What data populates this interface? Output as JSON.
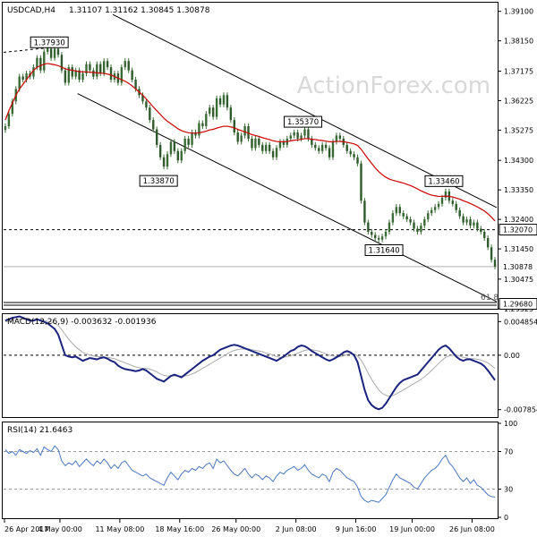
{
  "chart_data": {
    "type": "candlestick",
    "symbol_label": "USDCAD,H4",
    "ohlc_header": "1.31107 1.31162 1.30845 1.30878",
    "watermark": "ActionForex.com",
    "price_axis": {
      "ylim": [
        1.2955,
        1.3935
      ],
      "ticks": [
        "1.39100",
        "1.38150",
        "1.37175",
        "1.36225",
        "1.35275",
        "1.34300",
        "1.33350",
        "1.32400",
        "1.31450",
        "1.30475",
        "1.29525"
      ]
    },
    "price_tags": [
      {
        "label": "1.32070",
        "value": 1.3207,
        "style": "boxed"
      },
      {
        "label": "1.30878",
        "value": 1.30878,
        "style": "current"
      },
      {
        "label": "1.29680",
        "value": 1.2968,
        "style": "boxed"
      }
    ],
    "price_lines": [
      {
        "value": 1.3207,
        "style": "dashed"
      },
      {
        "value": 1.30878,
        "style": "solid-gray"
      },
      {
        "value": 1.2968,
        "style": "double"
      }
    ],
    "fib_label": "61.8",
    "annotations": [
      {
        "label": "1.37930",
        "x": 13,
        "price": 1.3793
      },
      {
        "label": "1.33870",
        "x": 44,
        "price": 1.3387
      },
      {
        "label": "1.35370",
        "x": 85,
        "price": 1.3537
      },
      {
        "label": "1.33460",
        "x": 125,
        "price": 1.3346
      },
      {
        "label": "1.31640",
        "x": 108,
        "price": 1.3164
      }
    ],
    "x_axis": {
      "range": [
        0,
        140
      ],
      "ticks": [
        {
          "label": "26 Apr 2017",
          "x": 0
        },
        {
          "label": "4 May 00:00",
          "x": 16
        },
        {
          "label": "11 May 08:00",
          "x": 33
        },
        {
          "label": "18 May 16:00",
          "x": 50
        },
        {
          "label": "26 May 00:00",
          "x": 66
        },
        {
          "label": "2 Jun 08:00",
          "x": 83
        },
        {
          "label": "9 Jun 16:00",
          "x": 100
        },
        {
          "label": "19 Jun 00:00",
          "x": 116
        },
        {
          "label": "26 Jun 08:00",
          "x": 133
        }
      ]
    },
    "close": [
      1.354,
      1.358,
      1.362,
      1.366,
      1.37,
      1.369,
      1.371,
      1.37,
      1.373,
      1.376,
      1.372,
      1.378,
      1.379,
      1.376,
      1.379,
      1.377,
      1.372,
      1.368,
      1.373,
      1.37,
      1.372,
      1.369,
      1.371,
      1.374,
      1.372,
      1.37,
      1.374,
      1.371,
      1.375,
      1.373,
      1.369,
      1.371,
      1.368,
      1.373,
      1.375,
      1.372,
      1.369,
      1.366,
      1.364,
      1.362,
      1.36,
      1.356,
      1.353,
      1.348,
      1.344,
      1.341,
      1.345,
      1.349,
      1.346,
      1.343,
      1.346,
      1.35,
      1.348,
      1.352,
      1.351,
      1.355,
      1.354,
      1.358,
      1.36,
      1.357,
      1.363,
      1.361,
      1.364,
      1.36,
      1.356,
      1.352,
      1.349,
      1.351,
      1.354,
      1.35,
      1.347,
      1.35,
      1.348,
      1.346,
      1.348,
      1.346,
      1.344,
      1.347,
      1.349,
      1.348,
      1.35,
      1.351,
      1.352,
      1.35,
      1.351,
      1.353,
      1.35,
      1.348,
      1.347,
      1.346,
      1.348,
      1.347,
      1.344,
      1.349,
      1.351,
      1.35,
      1.348,
      1.346,
      1.345,
      1.344,
      1.342,
      1.33,
      1.323,
      1.32,
      1.319,
      1.318,
      1.3175,
      1.3185,
      1.32,
      1.323,
      1.326,
      1.328,
      1.326,
      1.325,
      1.324,
      1.323,
      1.321,
      1.32,
      1.322,
      1.324,
      1.326,
      1.327,
      1.328,
      1.329,
      1.331,
      1.333,
      1.33,
      1.329,
      1.327,
      1.325,
      1.323,
      1.324,
      1.322,
      1.323,
      1.321,
      1.32,
      1.318,
      1.315,
      1.311,
      1.3088
    ],
    "moving_average": [
      1.356,
      1.359,
      1.3615,
      1.364,
      1.366,
      1.3675,
      1.369,
      1.3705,
      1.372,
      1.373,
      1.3735,
      1.374,
      1.3742,
      1.374,
      1.3738,
      1.3735,
      1.373,
      1.3725,
      1.3722,
      1.372,
      1.3718,
      1.3716,
      1.3715,
      1.3715,
      1.3714,
      1.3713,
      1.3712,
      1.3711,
      1.371,
      1.3708,
      1.3705,
      1.37,
      1.3695,
      1.369,
      1.3685,
      1.3678,
      1.367,
      1.366,
      1.365,
      1.364,
      1.3628,
      1.3615,
      1.3602,
      1.359,
      1.3578,
      1.3566,
      1.3556,
      1.3548,
      1.354,
      1.3532,
      1.3526,
      1.3522,
      1.3519,
      1.3518,
      1.3518,
      1.3519,
      1.3521,
      1.3524,
      1.3528,
      1.353,
      1.3534,
      1.3537,
      1.354,
      1.354,
      1.3538,
      1.3535,
      1.353,
      1.3526,
      1.3522,
      1.3518,
      1.3513,
      1.351,
      1.3507,
      1.3503,
      1.35,
      1.3497,
      1.3493,
      1.3491,
      1.349,
      1.349,
      1.3491,
      1.3493,
      1.3495,
      1.3496,
      1.3498,
      1.35,
      1.35,
      1.3498,
      1.3497,
      1.3495,
      1.3494,
      1.3492,
      1.349,
      1.349,
      1.3491,
      1.3491,
      1.349,
      1.3488,
      1.3486,
      1.3483,
      1.3478,
      1.3466,
      1.345,
      1.3435,
      1.342,
      1.3406,
      1.3394,
      1.3384,
      1.3376,
      1.337,
      1.3366,
      1.3363,
      1.336,
      1.3357,
      1.3353,
      1.3349,
      1.3344,
      1.3338,
      1.3332,
      1.3327,
      1.3322,
      1.3318,
      1.3316,
      1.3314,
      1.3314,
      1.3315,
      1.3314,
      1.3312,
      1.3309,
      1.3305,
      1.33,
      1.3296,
      1.3291,
      1.3286,
      1.328,
      1.3274,
      1.3267,
      1.3258,
      1.3247,
      1.3235
    ],
    "macd_panel": {
      "label": "MACD(12,26,9) -0.003632 -0.001936",
      "ylim": [
        -0.0088,
        0.0058
      ],
      "ticks": [
        "0.004854",
        "0.00",
        "-0.007854"
      ],
      "macd": [
        0.005,
        0.0052,
        0.0054,
        0.0055,
        0.0056,
        0.0054,
        0.0052,
        0.005,
        0.005,
        0.0052,
        0.005,
        0.0048,
        0.0046,
        0.0042,
        0.0038,
        0.003,
        0.0015,
        0.0,
        -0.0002,
        -0.0003,
        -0.0002,
        -0.0005,
        -0.0008,
        -0.0006,
        -0.0004,
        -0.0005,
        -0.0006,
        -0.0004,
        -0.0003,
        -0.0005,
        -0.0008,
        -0.001,
        -0.0015,
        -0.0018,
        -0.002,
        -0.0021,
        -0.0022,
        -0.0023,
        -0.0022,
        -0.002,
        -0.0022,
        -0.0026,
        -0.003,
        -0.0034,
        -0.0036,
        -0.0038,
        -0.0034,
        -0.003,
        -0.0028,
        -0.003,
        -0.0032,
        -0.0028,
        -0.0024,
        -0.002,
        -0.0016,
        -0.0012,
        -0.0008,
        -0.0005,
        -0.0002,
        0.0,
        0.0004,
        0.0008,
        0.001,
        0.0012,
        0.0014,
        0.0015,
        0.0014,
        0.0012,
        0.001,
        0.0008,
        0.0006,
        0.0004,
        0.0002,
        0.0,
        -0.0002,
        -0.0004,
        -0.0006,
        -0.0008,
        -0.0005,
        -0.0002,
        0.0002,
        0.0006,
        0.0008,
        0.0012,
        0.0014,
        0.0013,
        0.001,
        0.0006,
        0.0003,
        0.0,
        -0.0003,
        -0.0006,
        -0.0008,
        -0.0006,
        -0.0003,
        0.0,
        0.0004,
        0.0006,
        0.0004,
        0.0,
        -0.001,
        -0.003,
        -0.005,
        -0.0065,
        -0.0072,
        -0.0076,
        -0.0078,
        -0.0076,
        -0.007,
        -0.0062,
        -0.0054,
        -0.0046,
        -0.004,
        -0.0036,
        -0.0034,
        -0.0032,
        -0.003,
        -0.0028,
        -0.0022,
        -0.0016,
        -0.001,
        -0.0004,
        0.0002,
        0.0008,
        0.0012,
        0.0014,
        0.001,
        0.0004,
        -0.0002,
        -0.0006,
        -0.0008,
        -0.0006,
        -0.0006,
        -0.0008,
        -0.001,
        -0.0012,
        -0.0016,
        -0.0022,
        -0.0029,
        -0.0036
      ],
      "signal": [
        0.0048,
        0.0049,
        0.005,
        0.0051,
        0.0052,
        0.0052,
        0.0052,
        0.0051,
        0.0051,
        0.0051,
        0.0051,
        0.005,
        0.0049,
        0.0048,
        0.0046,
        0.0043,
        0.0037,
        0.003,
        0.0023,
        0.0017,
        0.0012,
        0.0008,
        0.0004,
        0.0002,
        0.0,
        -0.0001,
        -0.0002,
        -0.0002,
        -0.0003,
        -0.0003,
        -0.0004,
        -0.0005,
        -0.0007,
        -0.0009,
        -0.0011,
        -0.0013,
        -0.0015,
        -0.0017,
        -0.0018,
        -0.0019,
        -0.0019,
        -0.002,
        -0.0022,
        -0.0024,
        -0.0027,
        -0.0029,
        -0.003,
        -0.003,
        -0.003,
        -0.003,
        -0.003,
        -0.003,
        -0.0029,
        -0.0027,
        -0.0025,
        -0.0022,
        -0.0019,
        -0.0016,
        -0.0013,
        -0.001,
        -0.0007,
        -0.0004,
        -0.0001,
        0.0002,
        0.0005,
        0.0007,
        0.0008,
        0.0009,
        0.0009,
        0.0009,
        0.0008,
        0.0007,
        0.0006,
        0.0005,
        0.0003,
        0.0002,
        0.0,
        -0.0002,
        -0.0003,
        -0.0003,
        -0.0002,
        -0.0001,
        0.0001,
        0.0003,
        0.0005,
        0.0007,
        0.0008,
        0.0008,
        0.0007,
        0.0006,
        0.0004,
        0.0002,
        0.0,
        -0.0001,
        -0.0002,
        -0.0002,
        -0.0001,
        0.0001,
        0.0002,
        0.0002,
        -0.0001,
        -0.0007,
        -0.0016,
        -0.0026,
        -0.0035,
        -0.0043,
        -0.005,
        -0.0055,
        -0.0058,
        -0.0059,
        -0.0058,
        -0.0056,
        -0.0053,
        -0.005,
        -0.0047,
        -0.0044,
        -0.0041,
        -0.0038,
        -0.0035,
        -0.0031,
        -0.0027,
        -0.0022,
        -0.0017,
        -0.0012,
        -0.0007,
        -0.0003,
        -0.0001,
        0.0,
        0.0,
        -0.0001,
        -0.0003,
        -0.0004,
        -0.0005,
        -0.0005,
        -0.0006,
        -0.0007,
        -0.0009,
        -0.0011,
        -0.0015,
        -0.0019
      ]
    },
    "rsi_panel": {
      "label": "RSI(14) 21.6463",
      "ylim": [
        0,
        100
      ],
      "ticks": [
        "100",
        "70",
        "30",
        "0"
      ],
      "levels": [
        70,
        30
      ],
      "values": [
        72,
        68,
        70,
        66,
        72,
        70,
        68,
        71,
        69,
        73,
        66,
        75,
        72,
        70,
        76,
        72,
        60,
        55,
        58,
        56,
        60,
        54,
        58,
        62,
        58,
        55,
        60,
        57,
        62,
        58,
        52,
        56,
        52,
        58,
        60,
        55,
        50,
        48,
        46,
        44,
        46,
        42,
        40,
        38,
        36,
        34,
        42,
        48,
        44,
        40,
        46,
        50,
        48,
        52,
        50,
        54,
        52,
        56,
        58,
        52,
        62,
        58,
        60,
        55,
        50,
        46,
        44,
        48,
        52,
        46,
        42,
        46,
        44,
        40,
        44,
        42,
        38,
        44,
        48,
        46,
        50,
        52,
        54,
        50,
        52,
        56,
        50,
        46,
        44,
        42,
        46,
        44,
        38,
        48,
        52,
        50,
        46,
        42,
        40,
        38,
        32,
        22,
        18,
        16,
        18,
        17,
        16,
        20,
        24,
        32,
        40,
        46,
        42,
        40,
        38,
        36,
        32,
        30,
        36,
        42,
        46,
        50,
        52,
        56,
        62,
        66,
        58,
        54,
        48,
        42,
        38,
        42,
        36,
        40,
        34,
        32,
        28,
        24,
        22,
        21.6
      ]
    }
  }
}
